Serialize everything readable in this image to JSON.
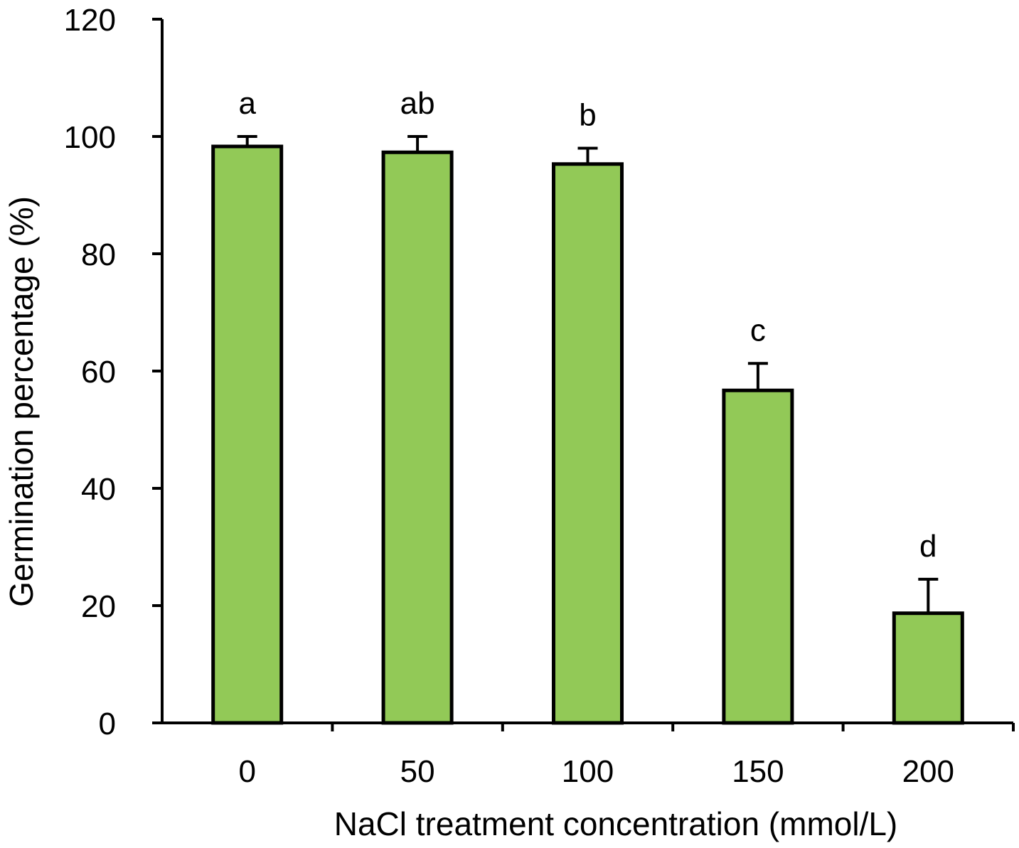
{
  "chart_data": {
    "type": "bar",
    "title": "",
    "xlabel": "NaCl treatment concentration (mmol/L)",
    "ylabel": "Germination percentage (%)",
    "categories": [
      "0",
      "50",
      "100",
      "150",
      "200"
    ],
    "values": [
      98.3,
      97.3,
      95.3,
      56.7,
      18.7
    ],
    "errors": [
      1.7,
      2.7,
      2.7,
      4.6,
      5.8
    ],
    "significance": [
      "a",
      "ab",
      "b",
      "c",
      "d"
    ],
    "ylim": [
      0,
      120
    ],
    "yticks": [
      0,
      20,
      40,
      60,
      80,
      100,
      120
    ],
    "bar_color": "#92c957",
    "edge_color": "#000000",
    "grid": false,
    "legend": "none"
  }
}
